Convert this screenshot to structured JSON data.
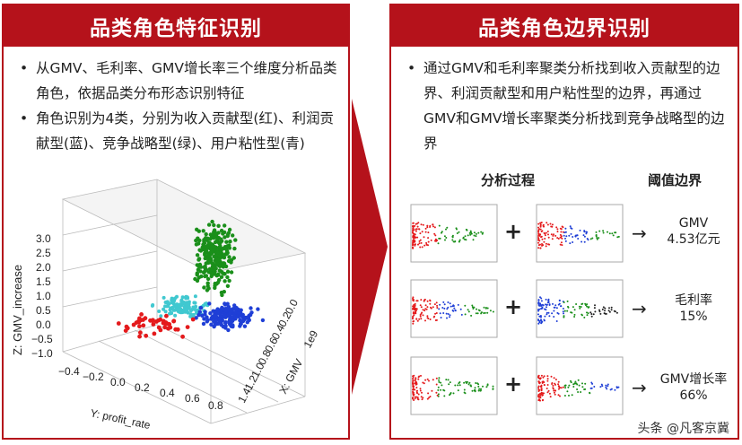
{
  "left_panel": {
    "title": "品类角色特征识别",
    "bullets": [
      "从GMV、毛利率、GMV增长率三个维度分析品类角色，依据品类分布形态识别特征",
      "角色识别为4类，分别为收入贡献型(红)、利润贡献型(蓝)、竞争战略型(绿)、用户粘性型(青)"
    ],
    "plot": {
      "z_label": "Z: GMV_increase",
      "y_label": "Y: profit_rate",
      "x_label": "X: GMV",
      "x_exponent": "1e9",
      "z_ticks": [
        "3.0",
        "2.5",
        "2.0",
        "1.5",
        "1.0",
        "0.5",
        "0.0",
        "−0.5",
        "−1.0"
      ],
      "y_ticks": [
        "−0.4",
        "−0.2",
        "0.0",
        "0.2",
        "0.4",
        "0.6",
        "0.8"
      ],
      "x_ticks": [
        "0.0",
        "0.2",
        "0.4",
        "0.6",
        "0.8",
        "1.0",
        "1.2",
        "1.4"
      ],
      "colors": {
        "red": "#e41a1c",
        "blue": "#1f3fd6",
        "green": "#1a8f1a",
        "cyan": "#40c8d0"
      }
    }
  },
  "right_panel": {
    "title": "品类角色边界识别",
    "bullets": [
      "通过GMV和毛利率聚类分析找到收入贡献型的边界、利润贡献型和用户粘性型的边界，再通过GMV和GMV增长率聚类分析找到竞争战略型的边界"
    ],
    "col_process": "分析过程",
    "col_threshold": "阈值边界",
    "plus": "+",
    "arrow": "→",
    "thresholds": [
      {
        "line1": "GMV",
        "line2": "4.53亿元"
      },
      {
        "line1": "毛利率",
        "line2": "15%"
      },
      {
        "line1": "GMV增长率",
        "line2": "66%"
      }
    ]
  },
  "watermark": "头条 @凡客京冀"
}
